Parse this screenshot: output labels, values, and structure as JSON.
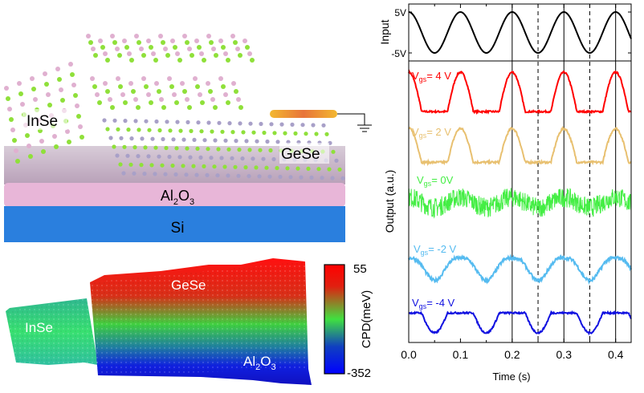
{
  "schematic": {
    "labels": {
      "inse": "InSe",
      "gese": "GeSe",
      "al2o3_main": "Al",
      "al2o3_sub1": "2",
      "al2o3_mid": "O",
      "al2o3_sub2": "3",
      "si": "Si"
    },
    "colors": {
      "si": "#2a7fde",
      "al2o3": "#e8b6d8",
      "in_atom": "#e0b0d0",
      "se_atom": "#8fe03a",
      "ge_atom": "#a8a0c8",
      "electrode": "#f0a030"
    }
  },
  "cpd_map": {
    "labels": {
      "inse": "InSe",
      "gese": "GeSe",
      "al2o3_main": "Al",
      "al2o3_sub1": "2",
      "al2o3_mid": "O",
      "al2o3_sub2": "3"
    },
    "colorbar": {
      "title": "CPD(meV)",
      "max": "55",
      "min": "-352",
      "colors": [
        "#ff0000",
        "#40e040",
        "#0000ff"
      ]
    }
  },
  "chart_data": {
    "type": "line",
    "xlabel": "Time (s)",
    "xlim": [
      0,
      0.43
    ],
    "xticks": [
      "0.0",
      "0.1",
      "0.2",
      "0.3",
      "0.4"
    ],
    "solid_vlines": [
      0.2,
      0.3,
      0.4
    ],
    "dashed_vlines": [
      0.25,
      0.35
    ],
    "input_panel": {
      "ylabel": "Input",
      "yticks": [
        "5V",
        "-5V"
      ],
      "signal": {
        "function": "cosine",
        "amplitude_V": 5,
        "period_s": 0.1,
        "color": "#000000"
      }
    },
    "output_panel": {
      "ylabel": "Output (a.u.)",
      "ylim": [
        0,
        10
      ],
      "series": [
        {
          "name": "V",
          "sub": "gs",
          "suffix": "= 4 V",
          "color": "#ff0000",
          "high": 9.6,
          "low": 8.2,
          "shape": "rectified-positive",
          "noise": 0.03
        },
        {
          "name": "V",
          "sub": "gs",
          "suffix": "= 2 V",
          "color": "#e8c070",
          "high": 7.6,
          "low": 6.4,
          "shape": "rectified-positive",
          "noise": 0.04
        },
        {
          "name": "V",
          "sub": "gs",
          "suffix": "= 0V",
          "color": "#44ee44",
          "high": 5.2,
          "low": 4.75,
          "shape": "noise",
          "noise": 0.35
        },
        {
          "name": "V",
          "sub": "gs",
          "suffix": "= -2 V",
          "color": "#55bbf0",
          "high": 3.0,
          "low": 2.2,
          "shape": "smooth-dip",
          "noise": 0.06
        },
        {
          "name": "V",
          "sub": "gs",
          "suffix": "= -4 V",
          "color": "#1010e0",
          "high": 1.05,
          "low": 0.34,
          "shape": "rectified-negative",
          "noise": 0.03
        }
      ]
    }
  }
}
